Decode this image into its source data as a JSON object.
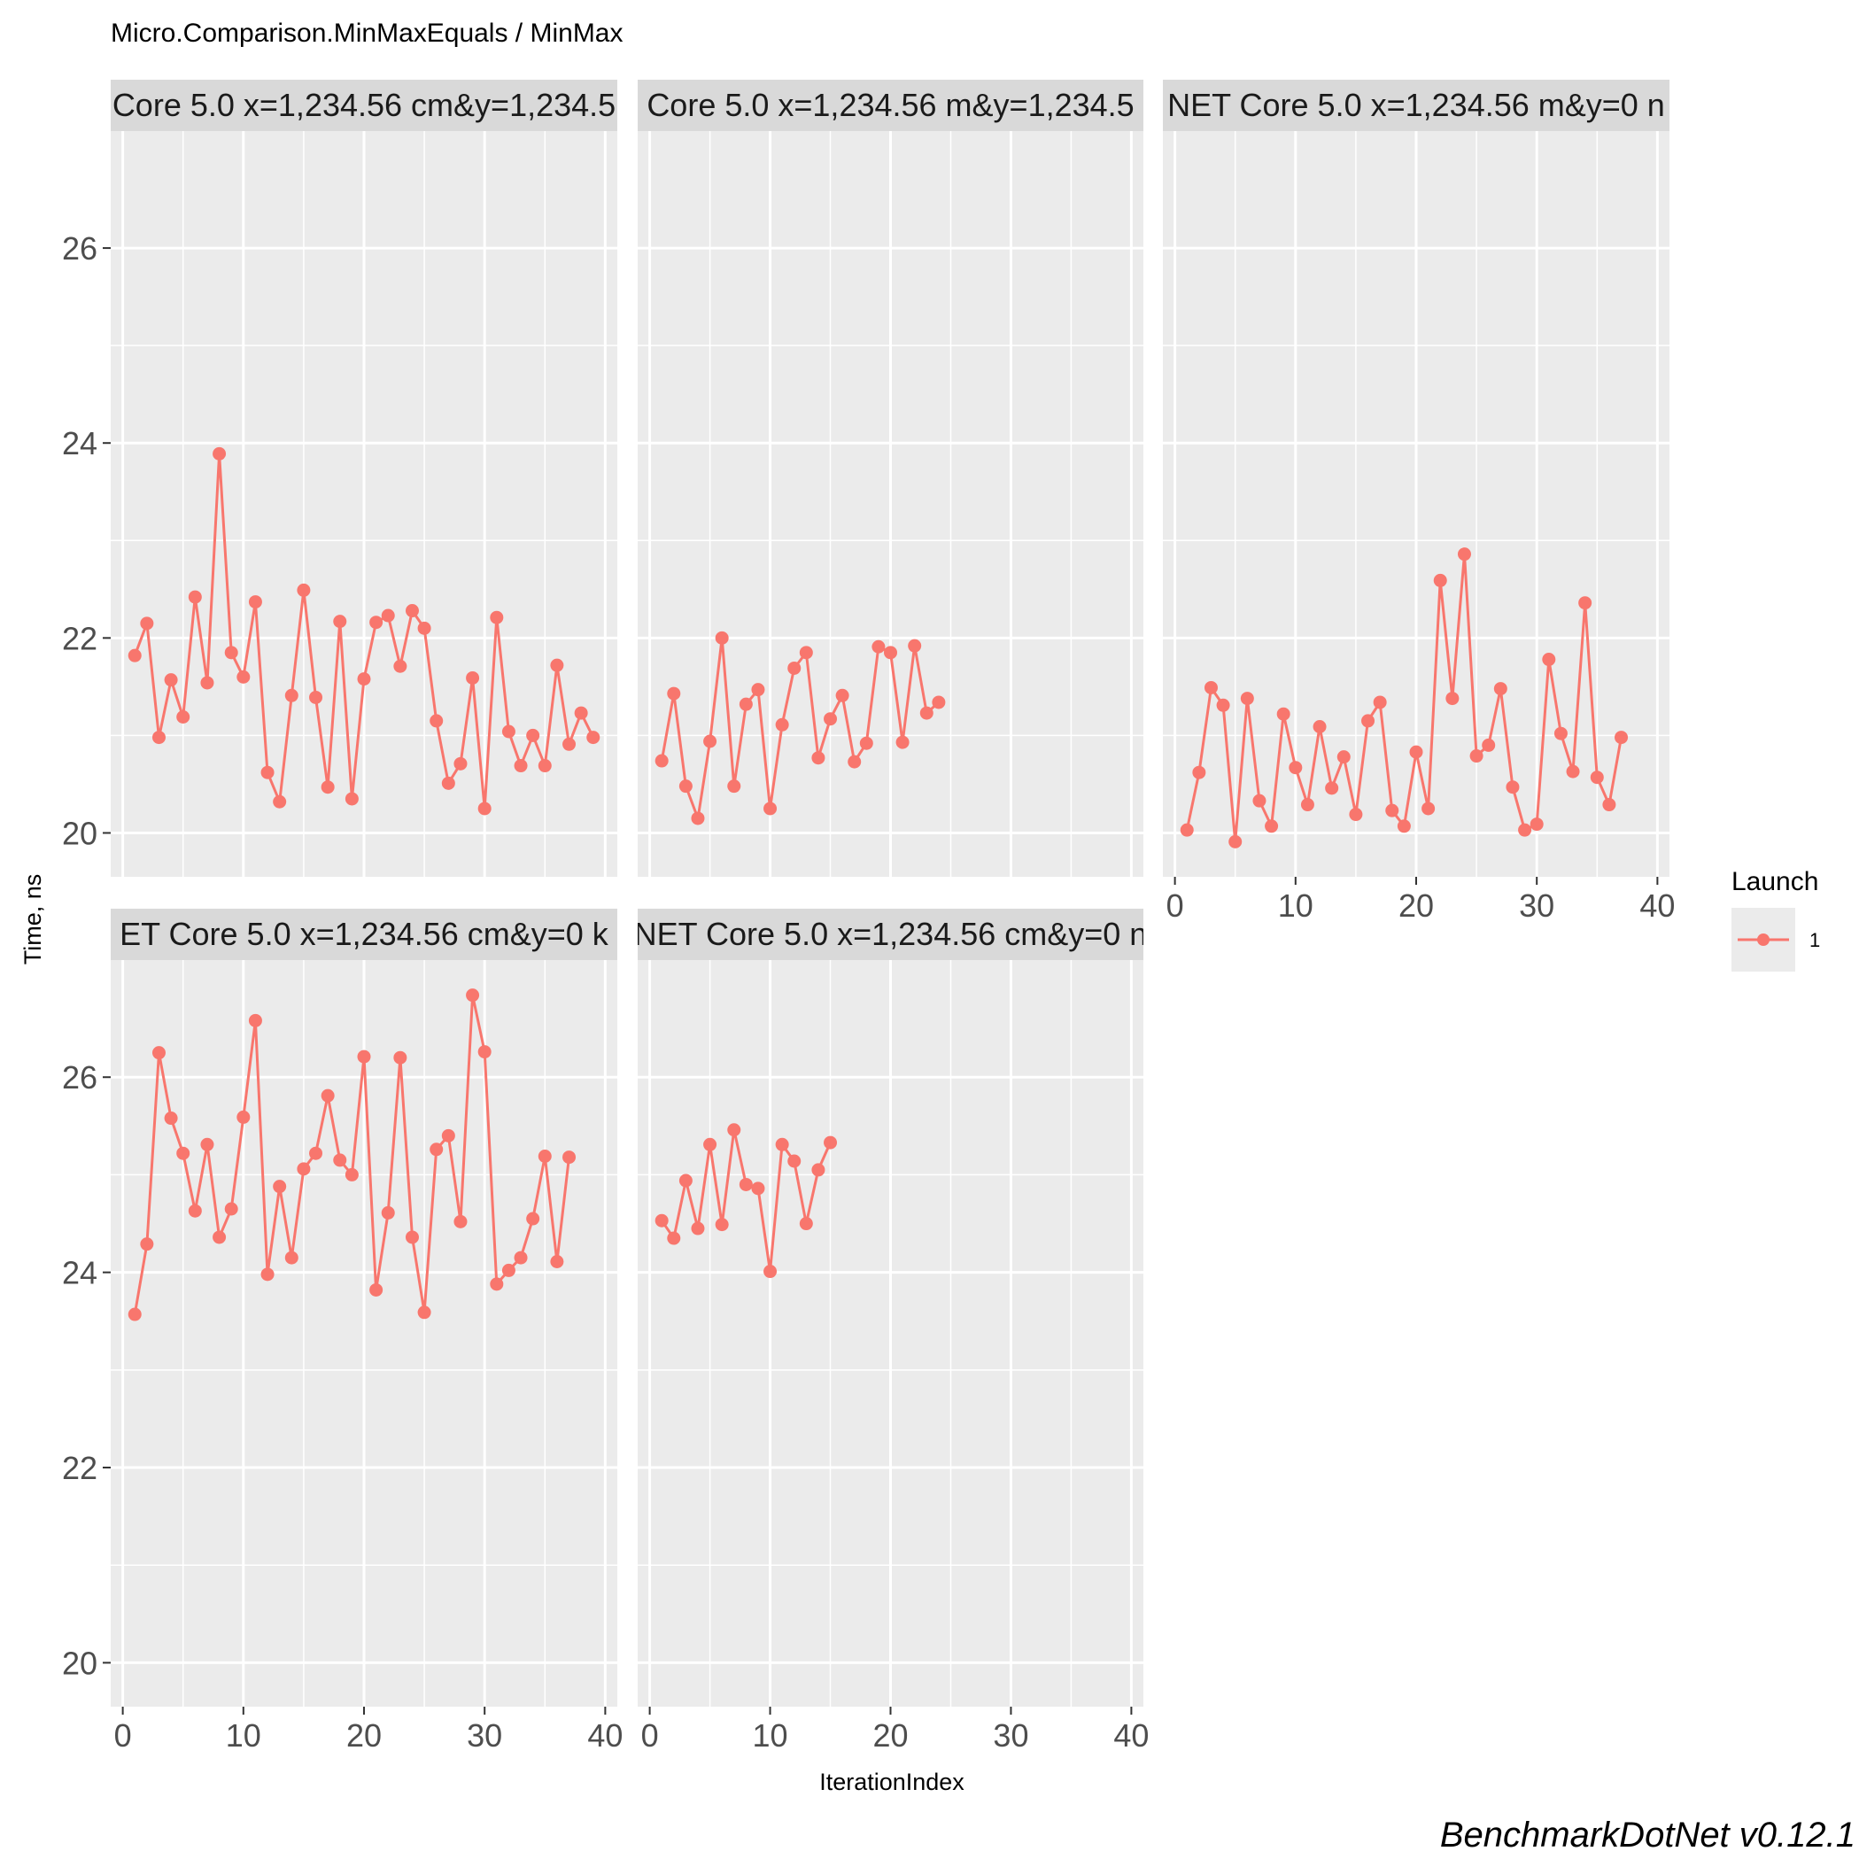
{
  "chart_data": {
    "type": "line",
    "title": "Micro.Comparison.MinMaxEquals / MinMax",
    "xlabel": "IterationIndex",
    "ylabel": "Time, ns",
    "caption": "BenchmarkDotNet v0.12.1",
    "xlim": [
      -1,
      41
    ],
    "ylim": [
      19.55,
      27.2
    ],
    "x_ticks": [
      0,
      10,
      20,
      30,
      40
    ],
    "y_ticks": [
      20,
      22,
      24,
      26
    ],
    "grid": true,
    "legend": {
      "title": "Launch",
      "position": "right",
      "items": [
        {
          "label": "1",
          "color": "#F8766D"
        }
      ]
    },
    "series_color": "#F8766D",
    "facets": [
      {
        "strip": "Core 5.0 x=1,234.56 cm&y=1,234.5",
        "x": [
          1,
          2,
          3,
          4,
          5,
          6,
          7,
          8,
          9,
          10,
          11,
          12,
          13,
          14,
          15,
          16,
          17,
          18,
          19,
          20,
          21,
          22,
          23,
          24,
          25,
          26,
          27,
          28,
          29,
          30,
          31,
          32,
          33,
          34,
          35,
          36,
          37,
          38,
          39
        ],
        "y": [
          21.82,
          22.15,
          20.98,
          21.57,
          21.19,
          22.42,
          21.54,
          23.89,
          21.85,
          21.6,
          22.37,
          20.62,
          20.32,
          21.41,
          22.49,
          21.39,
          20.47,
          22.17,
          20.35,
          21.58,
          22.16,
          22.23,
          21.71,
          22.28,
          22.1,
          21.15,
          20.51,
          20.71,
          21.59,
          20.25,
          22.21,
          21.04,
          20.69,
          21.0,
          20.69,
          21.72,
          20.91,
          21.23,
          20.98
        ]
      },
      {
        "strip": "Core 5.0 x=1,234.56 m&y=1,234.5",
        "x": [
          1,
          2,
          3,
          4,
          5,
          6,
          7,
          8,
          9,
          10,
          11,
          12,
          13,
          14,
          15,
          16,
          17,
          18,
          19,
          20,
          21,
          22,
          23,
          24
        ],
        "y": [
          20.74,
          21.43,
          20.48,
          20.15,
          20.94,
          22.0,
          20.48,
          21.32,
          21.47,
          20.25,
          21.11,
          21.69,
          21.85,
          20.77,
          21.17,
          21.41,
          20.73,
          20.92,
          21.91,
          21.85,
          20.93,
          21.92,
          21.23,
          21.34
        ]
      },
      {
        "strip": "NET Core 5.0 x=1,234.56 m&y=0 n",
        "x": [
          1,
          2,
          3,
          4,
          5,
          6,
          7,
          8,
          9,
          10,
          11,
          12,
          13,
          14,
          15,
          16,
          17,
          18,
          19,
          20,
          21,
          22,
          23,
          24,
          25,
          26,
          27,
          28,
          29,
          30,
          31,
          32,
          33,
          34,
          35,
          36,
          37
        ],
        "y": [
          20.03,
          20.62,
          21.49,
          21.31,
          19.91,
          21.38,
          20.33,
          20.07,
          21.22,
          20.67,
          20.29,
          21.09,
          20.46,
          20.78,
          20.19,
          21.15,
          21.34,
          20.23,
          20.07,
          20.83,
          20.25,
          22.59,
          21.38,
          22.86,
          20.79,
          20.9,
          21.48,
          20.47,
          20.03,
          20.09,
          21.78,
          21.02,
          20.63,
          22.36,
          20.57,
          20.29,
          20.98
        ]
      },
      {
        "strip": "ET Core 5.0 x=1,234.56 cm&y=0 k",
        "x": [
          1,
          2,
          3,
          4,
          5,
          6,
          7,
          8,
          9,
          10,
          11,
          12,
          13,
          14,
          15,
          16,
          17,
          18,
          19,
          20,
          21,
          22,
          23,
          24,
          25,
          26,
          27,
          28,
          29,
          30,
          31,
          32,
          33,
          34,
          35,
          36,
          37
        ],
        "y": [
          23.57,
          24.29,
          26.25,
          25.58,
          25.22,
          24.63,
          25.31,
          24.36,
          24.65,
          25.59,
          26.58,
          23.98,
          24.88,
          24.15,
          25.06,
          25.22,
          25.81,
          25.15,
          25.0,
          26.21,
          23.82,
          24.61,
          26.2,
          24.36,
          23.59,
          25.26,
          25.4,
          24.52,
          26.84,
          26.26,
          23.88,
          24.02,
          24.15,
          24.55,
          25.19,
          24.11,
          25.18
        ]
      },
      {
        "strip": "NET Core 5.0 x=1,234.56 cm&y=0 n",
        "x": [
          1,
          2,
          3,
          4,
          5,
          6,
          7,
          8,
          9,
          10,
          11,
          12,
          13,
          14,
          15
        ],
        "y": [
          24.53,
          24.35,
          24.94,
          24.45,
          25.31,
          24.49,
          25.46,
          24.9,
          24.86,
          24.01,
          25.31,
          25.14,
          24.5,
          25.05,
          25.33
        ]
      }
    ]
  }
}
